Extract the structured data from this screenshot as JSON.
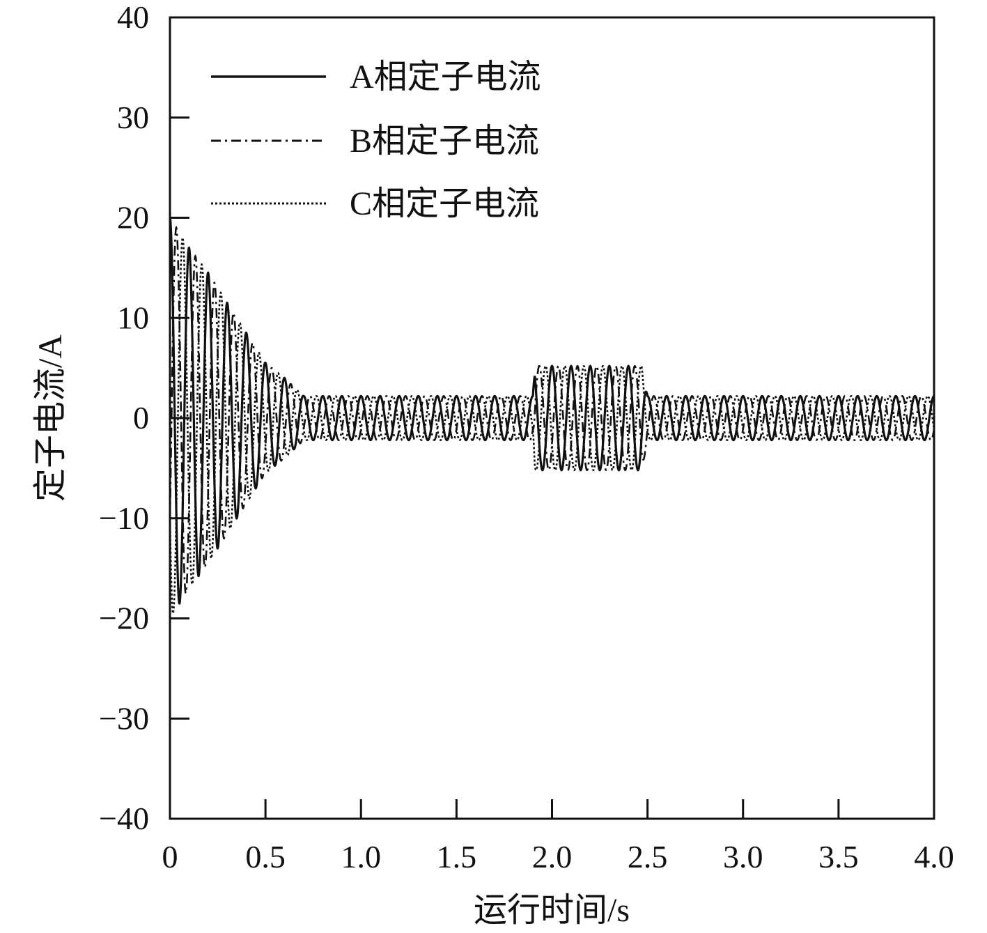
{
  "chart_data": {
    "type": "line",
    "title": "",
    "xlabel": "运行时间/s",
    "ylabel": "定子电流/A",
    "xlim": [
      0,
      4.0
    ],
    "ylim": [
      -40,
      40
    ],
    "x_ticks": [
      "0",
      "0.5",
      "1.0",
      "1.5",
      "2.0",
      "2.5",
      "3.0",
      "3.5",
      "4.0"
    ],
    "x_tick_values": [
      0,
      0.5,
      1.0,
      1.5,
      2.0,
      2.5,
      3.0,
      3.5,
      4.0
    ],
    "y_ticks": [
      "40",
      "30",
      "20",
      "10",
      "0",
      "−10",
      "−20",
      "−30",
      "−40"
    ],
    "y_tick_values": [
      40,
      30,
      20,
      10,
      0,
      -10,
      -20,
      -30,
      -40
    ],
    "grid": false,
    "legend_position": "top-left",
    "frequency_hz": 10,
    "envelope": [
      {
        "t": 0.0,
        "amp": 20
      },
      {
        "t": 0.1,
        "amp": 17
      },
      {
        "t": 0.2,
        "amp": 14.5
      },
      {
        "t": 0.3,
        "amp": 11.5
      },
      {
        "t": 0.4,
        "amp": 8.5
      },
      {
        "t": 0.5,
        "amp": 5.5
      },
      {
        "t": 0.6,
        "amp": 4
      },
      {
        "t": 0.7,
        "amp": 2.2
      },
      {
        "t": 0.8,
        "amp": 2.2
      },
      {
        "t": 1.9,
        "amp": 2.2
      },
      {
        "t": 1.91,
        "amp": 5.2
      },
      {
        "t": 2.47,
        "amp": 5.2
      },
      {
        "t": 2.5,
        "amp": 2.2
      },
      {
        "t": 4.0,
        "amp": 2.2
      }
    ],
    "series": [
      {
        "name": "A相定子电流",
        "phase_deg": 0,
        "line_style": "solid",
        "color": "#111111"
      },
      {
        "name": "B相定子电流",
        "phase_deg": -120,
        "line_style": "dash-dot",
        "color": "#111111"
      },
      {
        "name": "C相定子电流",
        "phase_deg": 120,
        "line_style": "dotted",
        "color": "#111111"
      }
    ]
  }
}
